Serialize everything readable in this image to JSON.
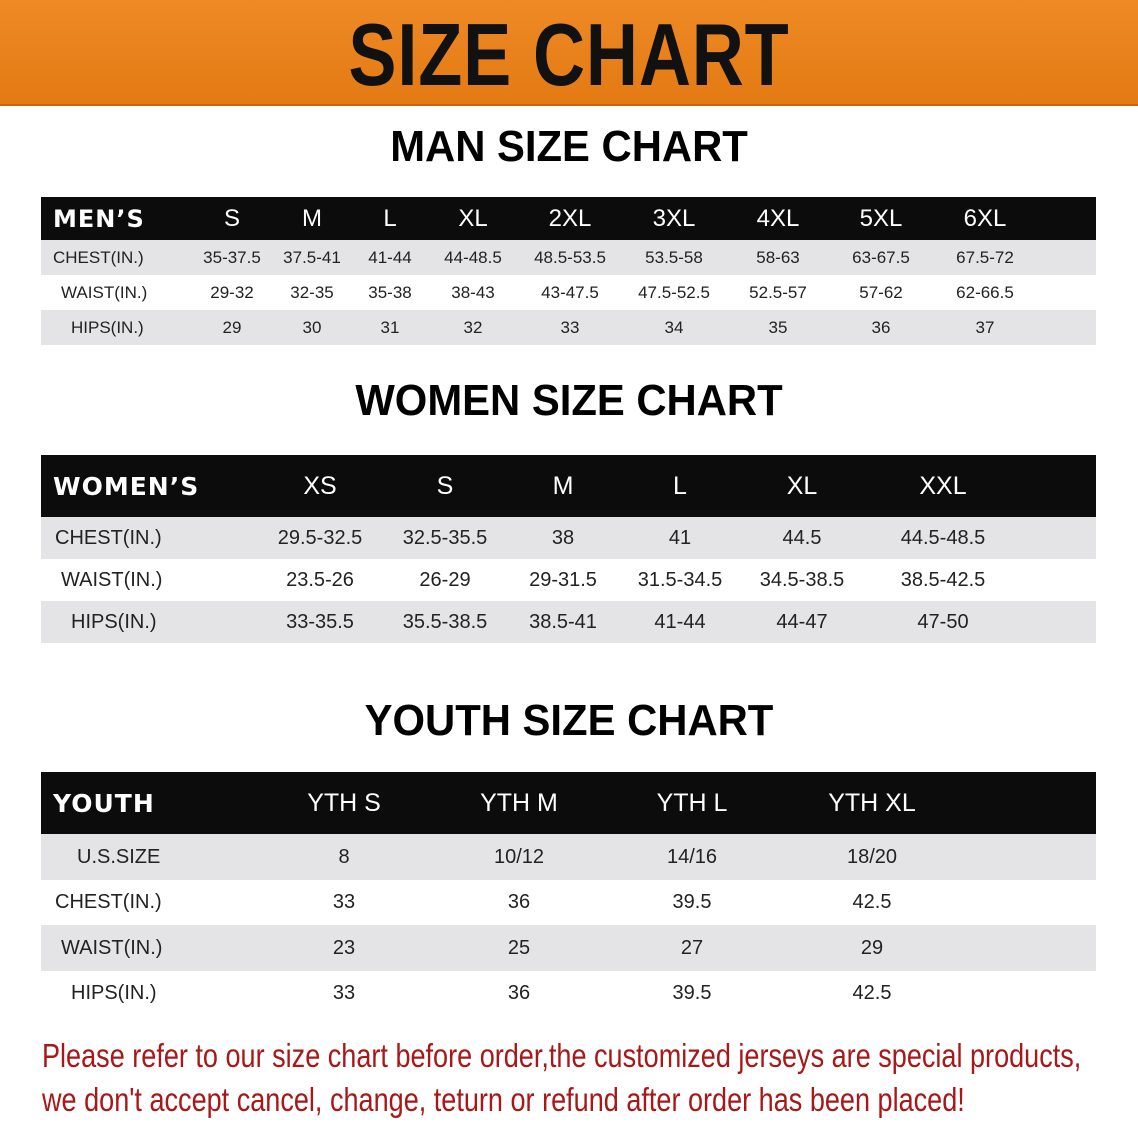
{
  "banner": {
    "title": "SIZE CHART",
    "color": "#e8811c"
  },
  "men": {
    "title": "MAN SIZE CHART",
    "header": [
      "MEN’S",
      "S",
      "M",
      "L",
      "XL",
      "2XL",
      "3XL",
      "4XL",
      "5XL",
      "6XL"
    ],
    "rows": [
      [
        "CHEST(IN.)",
        "35-37.5",
        "37.5-41",
        "41-44",
        "44-48.5",
        "48.5-53.5",
        "53.5-58",
        "58-63",
        "63-67.5",
        "67.5-72"
      ],
      [
        "WAIST(IN.)",
        "29-32",
        "32-35",
        "35-38",
        "38-43",
        "43-47.5",
        "47.5-52.5",
        "52.5-57",
        "57-62",
        "62-66.5"
      ],
      [
        "HIPS(IN.)",
        "29",
        "30",
        "31",
        "32",
        "33",
        "34",
        "35",
        "36",
        "37"
      ]
    ]
  },
  "women": {
    "title": "WOMEN SIZE CHART",
    "header": [
      "WOMEN’S",
      "XS",
      "S",
      "M",
      "L",
      "XL",
      "XXL"
    ],
    "rows": [
      [
        "CHEST(IN.)",
        "29.5-32.5",
        "32.5-35.5",
        "38",
        "41",
        "44.5",
        "44.5-48.5"
      ],
      [
        "WAIST(IN.)",
        "23.5-26",
        "26-29",
        "29-31.5",
        "31.5-34.5",
        "34.5-38.5",
        "38.5-42.5"
      ],
      [
        "HIPS(IN.)",
        "33-35.5",
        "35.5-38.5",
        "38.5-41",
        "41-44",
        "44-47",
        "47-50"
      ]
    ]
  },
  "youth": {
    "title": "YOUTH SIZE CHART",
    "header": [
      "YOUTH",
      "YTH S",
      "YTH M",
      "YTH L",
      "YTH XL"
    ],
    "rows": [
      [
        "U.S.SIZE",
        "8",
        "10/12",
        "14/16",
        "18/20"
      ],
      [
        "CHEST(IN.)",
        "33",
        "36",
        "39.5",
        "42.5"
      ],
      [
        "WAIST(IN.)",
        "23",
        "25",
        "27",
        "29"
      ],
      [
        "HIPS(IN.)",
        "33",
        "36",
        "39.5",
        "42.5"
      ]
    ]
  },
  "note": {
    "line1": "Please refer to our size chart before order,the customized jerseys are special products,",
    "line2": "we don't accept cancel, change, teturn or refund after order has been placed!",
    "color": "#a81818"
  }
}
